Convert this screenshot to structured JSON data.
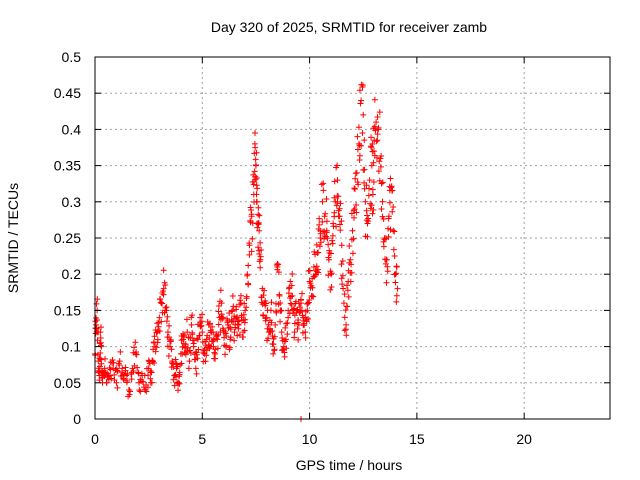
{
  "chart_data": {
    "type": "scatter",
    "title": "Day 320 of 2025, SRMTID for receiver zamb",
    "xlabel": "GPS time / hours",
    "ylabel": "SRMTID / TECUs",
    "xlim": [
      0,
      24
    ],
    "ylim": [
      0,
      0.5
    ],
    "xticks": [
      0,
      5,
      10,
      15,
      20
    ],
    "xtick_labels": [
      "0",
      "5",
      "10",
      "15",
      "20"
    ],
    "yticks": [
      0,
      0.05,
      0.1,
      0.15,
      0.2,
      0.25,
      0.3,
      0.35,
      0.4,
      0.45,
      0.5
    ],
    "ytick_labels": [
      "0",
      "0.05",
      "0.1",
      "0.15",
      "0.2",
      "0.25",
      "0.3",
      "0.35",
      "0.4",
      "0.45",
      "0.5"
    ],
    "grid": true,
    "marker": "+",
    "color": "#ff0000",
    "series": [
      {
        "name": "SRMTID",
        "x": [
          0.0,
          0.05,
          0.1,
          0.15,
          0.2,
          0.25,
          0.3,
          0.35,
          0.45,
          0.55,
          0.7,
          0.85,
          1.0,
          1.15,
          1.3,
          1.45,
          1.6,
          1.75,
          1.9,
          2.05,
          2.2,
          2.35,
          2.5,
          2.6,
          2.7,
          2.8,
          2.9,
          3.0,
          3.1,
          3.2,
          3.3,
          3.4,
          3.5,
          3.6,
          3.7,
          3.8,
          3.9,
          4.0,
          4.1,
          4.2,
          4.3,
          4.4,
          4.5,
          4.6,
          4.7,
          4.8,
          4.9,
          5.0,
          5.1,
          5.2,
          5.3,
          5.4,
          5.5,
          5.6,
          5.7,
          5.8,
          5.9,
          6.0,
          6.1,
          6.2,
          6.3,
          6.4,
          6.5,
          6.6,
          6.7,
          6.8,
          6.9,
          7.0,
          7.1,
          7.2,
          7.3,
          7.4,
          7.45,
          7.5,
          7.55,
          7.6,
          7.65,
          7.7,
          7.8,
          7.9,
          8.0,
          8.1,
          8.2,
          8.3,
          8.4,
          8.5,
          8.6,
          8.7,
          8.8,
          8.9,
          9.0,
          9.1,
          9.2,
          9.3,
          9.4,
          9.5,
          9.6,
          9.7,
          9.8,
          9.9,
          10.0,
          10.1,
          10.2,
          10.3,
          10.4,
          10.5,
          10.6,
          10.7,
          10.8,
          10.9,
          11.0,
          11.1,
          11.2,
          11.3,
          11.4,
          11.5,
          11.6,
          11.7,
          11.8,
          11.9,
          12.0,
          12.1,
          12.2,
          12.3,
          12.4,
          12.5,
          12.6,
          12.7,
          12.8,
          12.9,
          12.95,
          13.0,
          13.1,
          13.2,
          13.3,
          13.4,
          13.5,
          13.6,
          13.7,
          13.8,
          13.9,
          14.0,
          14.1,
          9.6
        ],
        "y": [
          0.09,
          0.13,
          0.15,
          0.08,
          0.06,
          0.12,
          0.1,
          0.05,
          0.07,
          0.05,
          0.06,
          0.07,
          0.05,
          0.08,
          0.06,
          0.06,
          0.04,
          0.07,
          0.09,
          0.05,
          0.06,
          0.04,
          0.07,
          0.05,
          0.08,
          0.1,
          0.12,
          0.14,
          0.16,
          0.18,
          0.15,
          0.12,
          0.1,
          0.08,
          0.06,
          0.07,
          0.05,
          0.09,
          0.11,
          0.1,
          0.12,
          0.08,
          0.13,
          0.1,
          0.07,
          0.11,
          0.14,
          0.12,
          0.09,
          0.11,
          0.13,
          0.1,
          0.12,
          0.09,
          0.11,
          0.14,
          0.16,
          0.12,
          0.1,
          0.13,
          0.11,
          0.15,
          0.12,
          0.14,
          0.13,
          0.16,
          0.12,
          0.15,
          0.2,
          0.24,
          0.28,
          0.31,
          0.38,
          0.35,
          0.3,
          0.27,
          0.26,
          0.22,
          0.18,
          0.16,
          0.14,
          0.12,
          0.15,
          0.09,
          0.13,
          0.21,
          0.17,
          0.12,
          0.1,
          0.11,
          0.14,
          0.19,
          0.17,
          0.12,
          0.15,
          0.13,
          0.16,
          0.14,
          0.12,
          0.15,
          0.19,
          0.17,
          0.21,
          0.2,
          0.23,
          0.25,
          0.3,
          0.28,
          0.26,
          0.22,
          0.2,
          0.27,
          0.3,
          0.33,
          0.28,
          0.24,
          0.16,
          0.13,
          0.19,
          0.22,
          0.26,
          0.29,
          0.34,
          0.38,
          0.44,
          0.42,
          0.3,
          0.27,
          0.33,
          0.35,
          0.31,
          0.37,
          0.41,
          0.4,
          0.36,
          0.3,
          0.25,
          0.22,
          0.28,
          0.32,
          0.26,
          0.2,
          0.18,
          0.0
        ]
      }
    ]
  }
}
